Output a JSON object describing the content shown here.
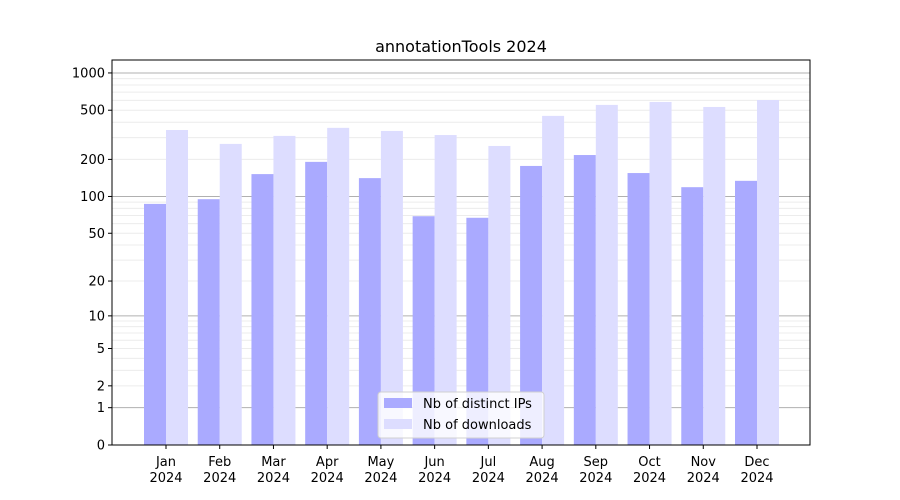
{
  "chart_data": {
    "type": "bar",
    "title": "annotationTools 2024",
    "xlabel": "",
    "ylabel": "",
    "yscale": "log10(y+1)",
    "ylim": [
      0,
      1300
    ],
    "yticks": [
      0,
      1,
      2,
      5,
      10,
      20,
      50,
      100,
      200,
      500,
      1000
    ],
    "grid": true,
    "legend_position": "bottom-center",
    "categories": [
      "Jan\n2024",
      "Feb\n2024",
      "Mar\n2024",
      "Apr\n2024",
      "May\n2024",
      "Jun\n2024",
      "Jul\n2024",
      "Aug\n2024",
      "Sep\n2024",
      "Oct\n2024",
      "Nov\n2024",
      "Dec\n2024"
    ],
    "series": [
      {
        "name": "Nb of distinct IPs",
        "color": "#aaaaff",
        "values": [
          87,
          95,
          152,
          191,
          141,
          69,
          67,
          177,
          217,
          155,
          119,
          134
        ]
      },
      {
        "name": "Nb of downloads",
        "color": "#ddddff",
        "values": [
          346,
          267,
          310,
          360,
          340,
          315,
          257,
          450,
          552,
          583,
          531,
          605
        ]
      }
    ]
  }
}
